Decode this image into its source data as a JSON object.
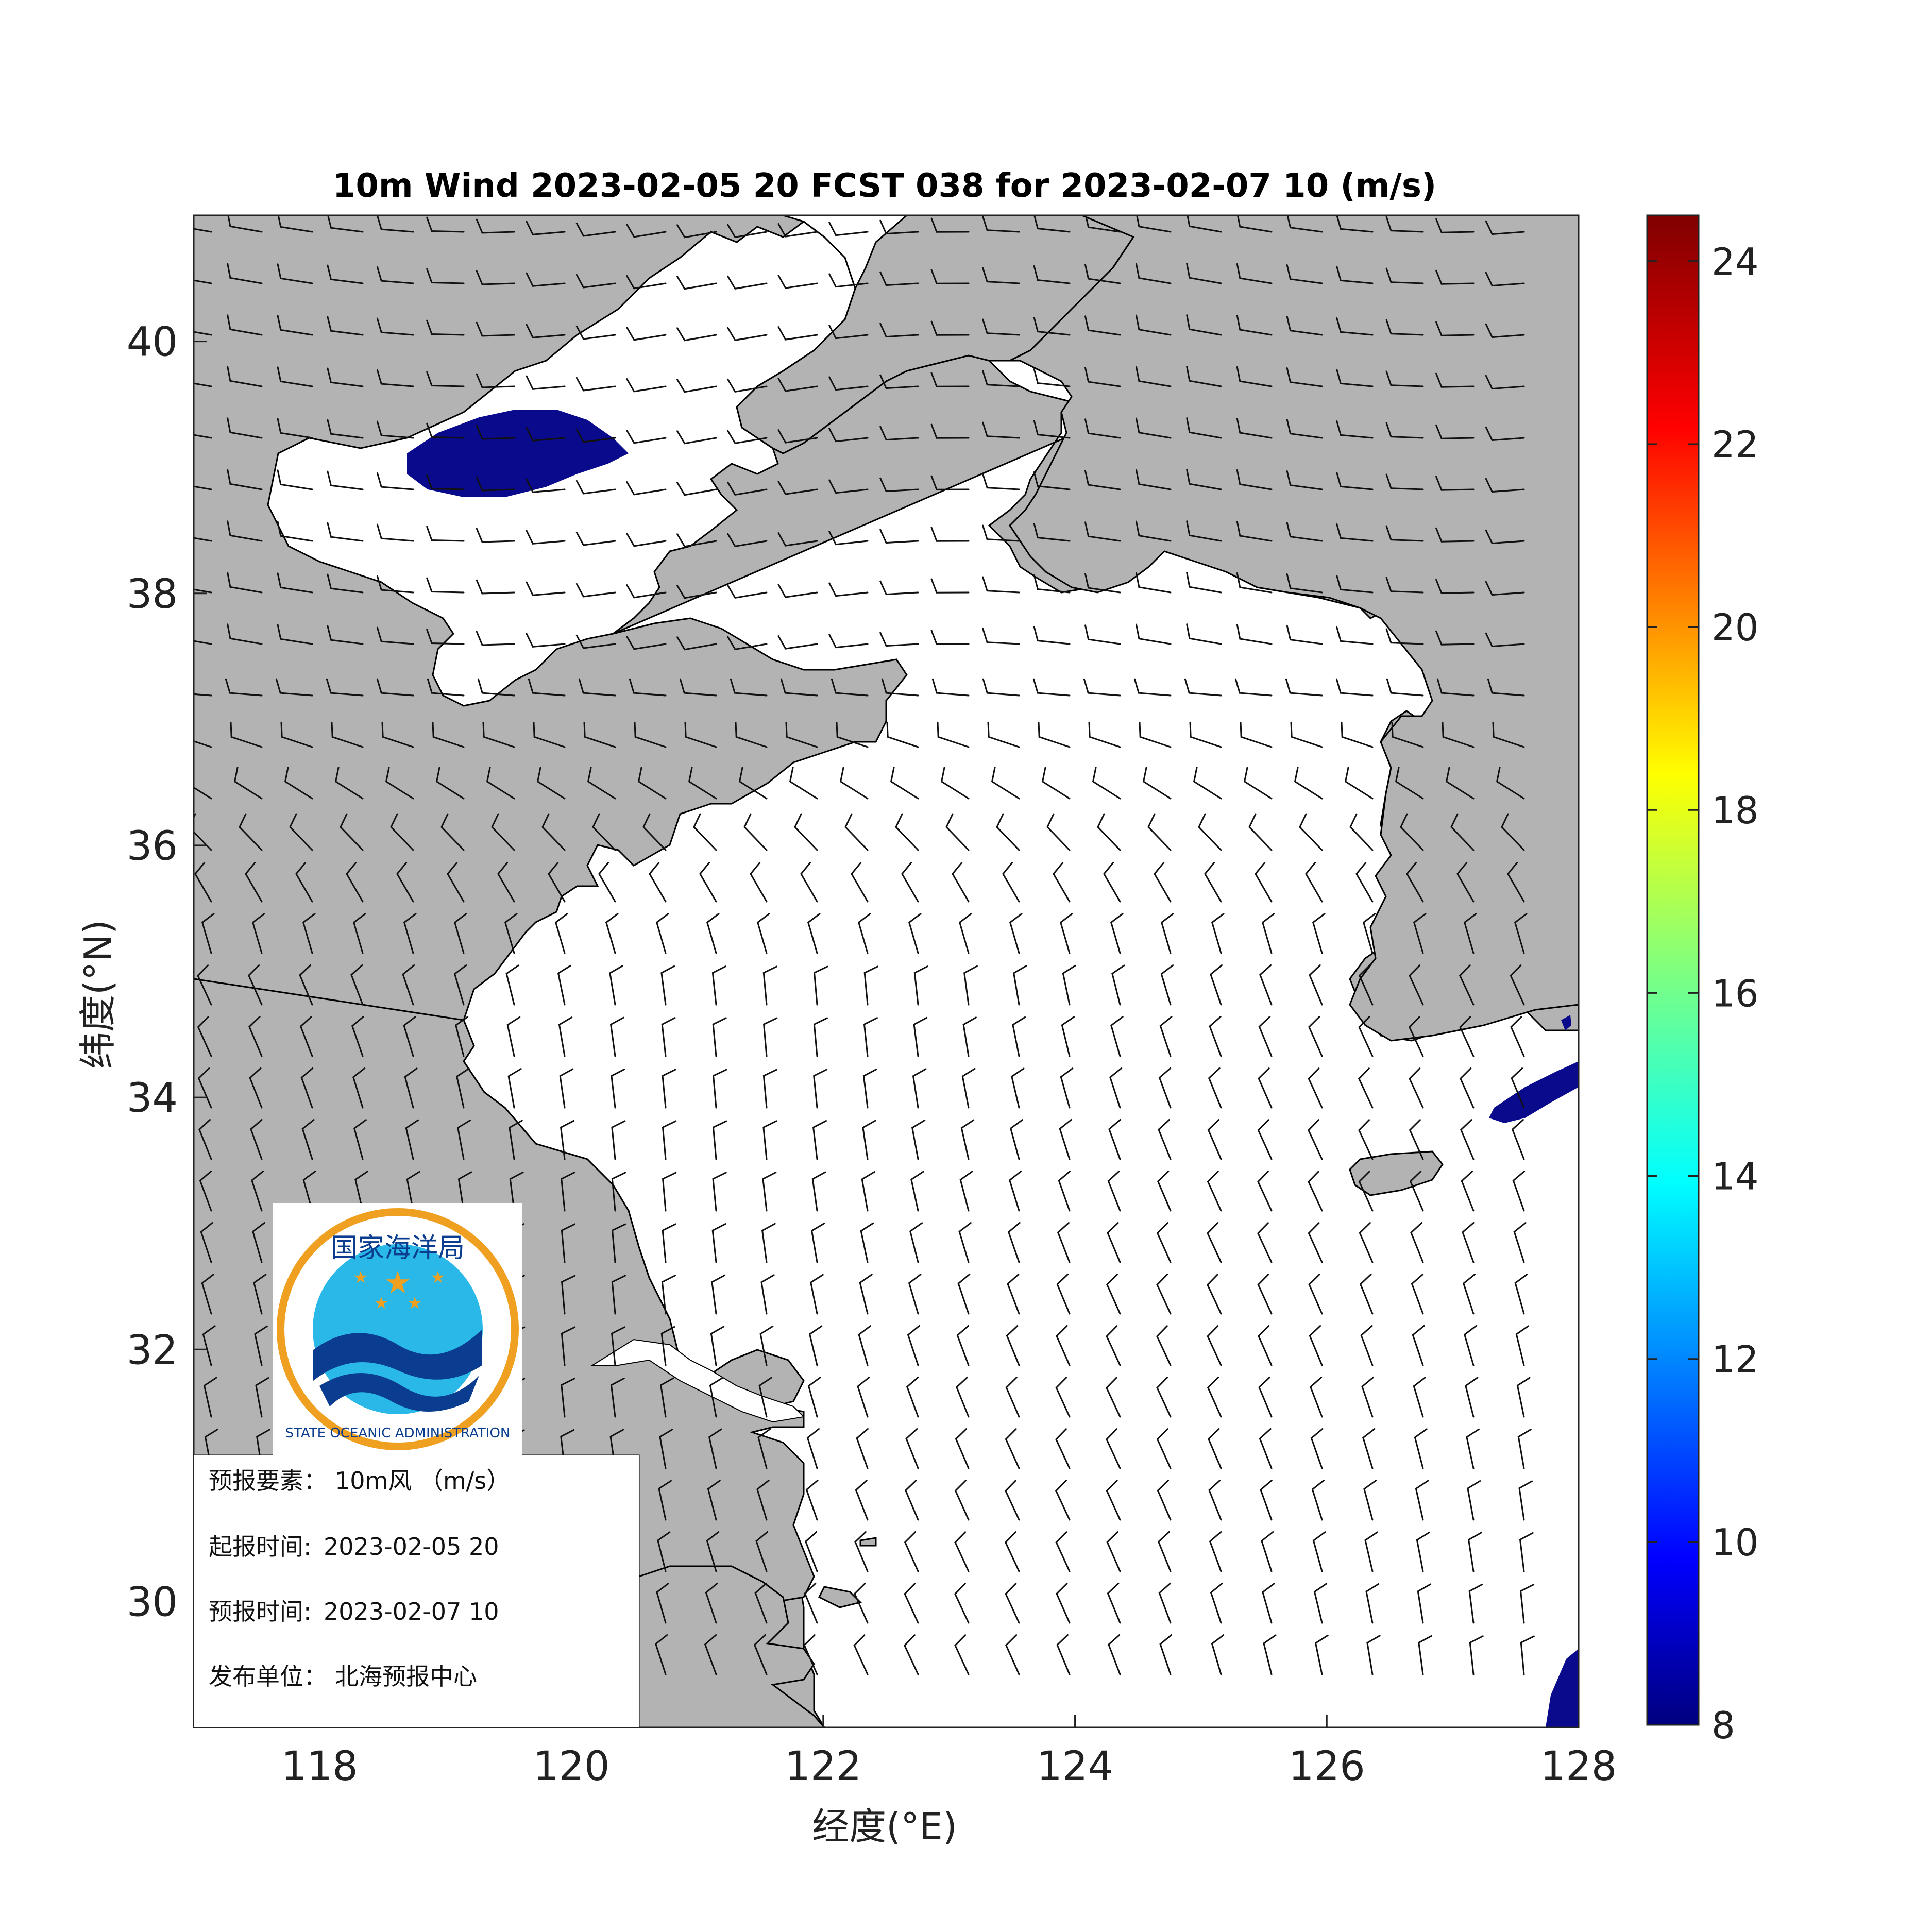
{
  "title": "10m Wind 2023-02-05 20 FCST 038 for 2023-02-07 10 (m/s)",
  "axes": {
    "xlabel": "经度(°E)",
    "ylabel": "纬度(°N)",
    "xlim": [
      117,
      128
    ],
    "ylim": [
      29,
      41
    ],
    "xticks": [
      {
        "v": 118,
        "t": "118"
      },
      {
        "v": 120,
        "t": "120"
      },
      {
        "v": 122,
        "t": "122"
      },
      {
        "v": 124,
        "t": "124"
      },
      {
        "v": 126,
        "t": "126"
      },
      {
        "v": 128,
        "t": "128"
      }
    ],
    "yticks": [
      {
        "v": 30,
        "t": "30"
      },
      {
        "v": 32,
        "t": "32"
      },
      {
        "v": 34,
        "t": "34"
      },
      {
        "v": 36,
        "t": "36"
      },
      {
        "v": 38,
        "t": "38"
      },
      {
        "v": 40,
        "t": "40"
      }
    ]
  },
  "colorbar": {
    "min": 8,
    "max": 24.5,
    "ticks": [
      {
        "v": 8,
        "t": "8"
      },
      {
        "v": 10,
        "t": "10"
      },
      {
        "v": 12,
        "t": "12"
      },
      {
        "v": 14,
        "t": "14"
      },
      {
        "v": 16,
        "t": "16"
      },
      {
        "v": 18,
        "t": "18"
      },
      {
        "v": 20,
        "t": "20"
      },
      {
        "v": 22,
        "t": "22"
      },
      {
        "v": 24,
        "t": "24"
      }
    ],
    "colormap": "jet"
  },
  "colors": {
    "land": "#b3b3b3",
    "sea": "#ffffff",
    "speed_fill": "#0a0a8c",
    "logo_ring": "#f0a020",
    "logo_sky": "#29b8e8",
    "logo_wave": "#0a3d8f",
    "logo_star": "#f0a020"
  },
  "logo": {
    "top_text": "国家海洋局",
    "bottom_text": "STATE OCEANIC ADMINISTRATION"
  },
  "info": {
    "element_label": "预报要素：",
    "element_value": "10m风 （m/s）",
    "issue_label": "起报时间:",
    "issue_value": "2023-02-05 20",
    "valid_label": "预报时间:",
    "valid_value": "2023-02-07 10",
    "publisher_label": "发布单位：",
    "publisher_value": "北海预报中心"
  },
  "wind_field": {
    "description_north": "westerly winds ~8-10 m/s over Bohai",
    "description_south": "northerly/north-northwesterly winds ~6-8 m/s over Yellow Sea and East China Sea"
  }
}
